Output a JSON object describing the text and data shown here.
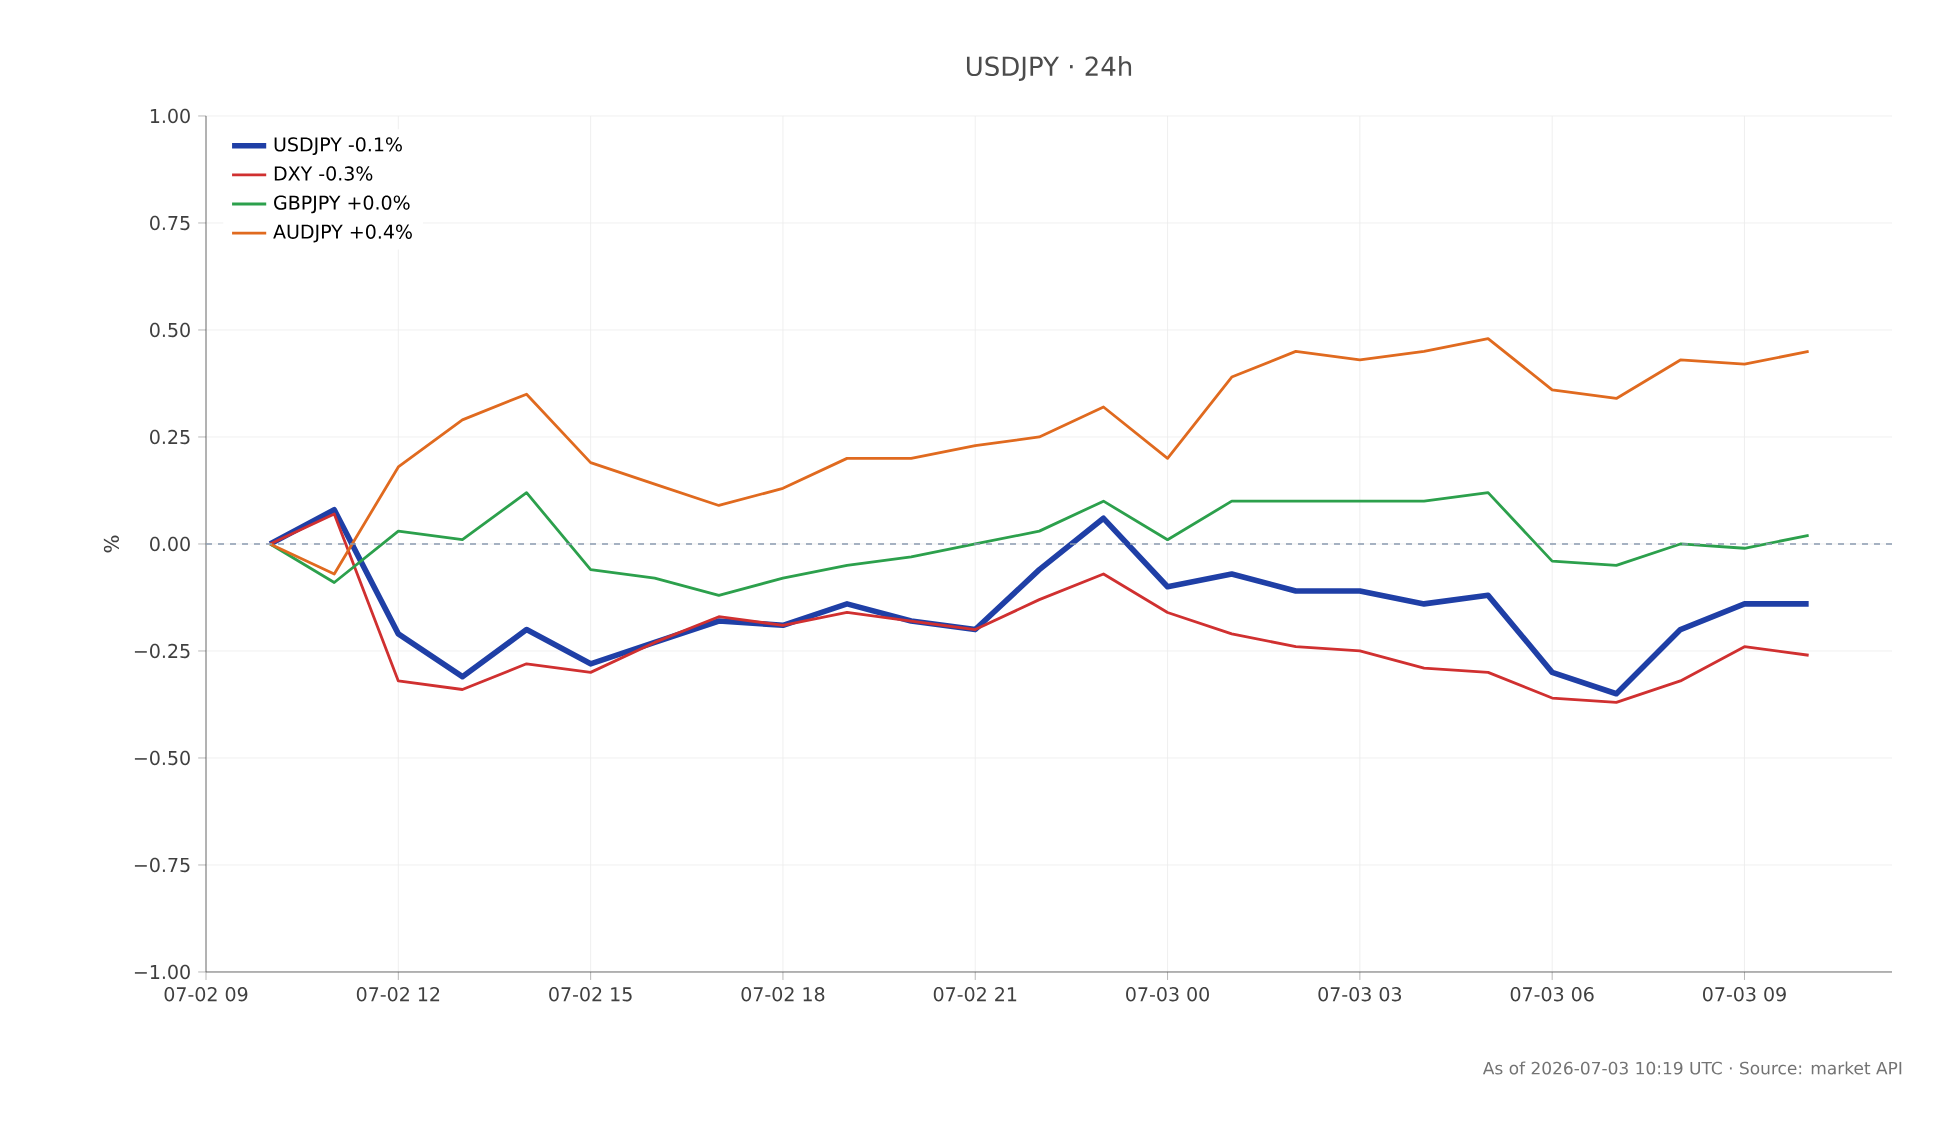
{
  "chart_data": {
    "type": "line",
    "title": "USDJPY · 24h",
    "ylabel": "%",
    "x": [
      "2026-07-02T10:00",
      "2026-07-02T11:00",
      "2026-07-02T12:00",
      "2026-07-02T13:00",
      "2026-07-02T14:00",
      "2026-07-02T15:00",
      "2026-07-02T16:00",
      "2026-07-02T17:00",
      "2026-07-02T18:00",
      "2026-07-02T19:00",
      "2026-07-02T20:00",
      "2026-07-02T21:00",
      "2026-07-02T22:00",
      "2026-07-02T23:00",
      "2026-07-03T00:00",
      "2026-07-03T01:00",
      "2026-07-03T02:00",
      "2026-07-03T03:00",
      "2026-07-03T04:00",
      "2026-07-03T05:00",
      "2026-07-03T06:00",
      "2026-07-03T07:00",
      "2026-07-03T08:00",
      "2026-07-03T09:00",
      "2026-07-03T10:00"
    ],
    "series": [
      {
        "name": "USDJPY -0.1%",
        "color": "#1f3fa6",
        "values": [
          0,
          0.08,
          -0.21,
          -0.31,
          -0.2,
          -0.28,
          -0.23,
          -0.18,
          -0.19,
          -0.14,
          -0.18,
          -0.2,
          -0.06,
          0.06,
          -0.1,
          -0.07,
          -0.11,
          -0.11,
          -0.14,
          -0.12,
          -0.3,
          -0.35,
          -0.2,
          -0.14,
          -0.14
        ]
      },
      {
        "name": "DXY -0.3%",
        "color": "#d03030",
        "values": [
          0,
          0.07,
          -0.32,
          -0.34,
          -0.28,
          -0.3,
          -0.23,
          -0.17,
          -0.19,
          -0.16,
          -0.18,
          -0.2,
          -0.13,
          -0.07,
          -0.16,
          -0.21,
          -0.24,
          -0.25,
          -0.29,
          -0.3,
          -0.36,
          -0.37,
          -0.32,
          -0.24,
          -0.26
        ]
      },
      {
        "name": "GBPJPY +0.0%",
        "color": "#2ca04c",
        "values": [
          0,
          -0.09,
          0.03,
          0.01,
          0.12,
          -0.06,
          -0.08,
          -0.12,
          -0.08,
          -0.05,
          -0.03,
          0,
          0.03,
          0.1,
          0.01,
          0.1,
          0.1,
          0.1,
          0.1,
          0.12,
          -0.04,
          -0.05,
          0,
          -0.01,
          0.02
        ]
      },
      {
        "name": "AUDJPY +0.4%",
        "color": "#e06a1f",
        "values": [
          0,
          -0.07,
          0.18,
          0.29,
          0.35,
          0.19,
          0.14,
          0.09,
          0.13,
          0.2,
          0.2,
          0.23,
          0.25,
          0.32,
          0.2,
          0.39,
          0.45,
          0.43,
          0.45,
          0.48,
          0.36,
          0.34,
          0.43,
          0.42,
          0.45
        ]
      }
    ],
    "xlim": [
      "2026-07-02T09:00",
      "2026-07-03T11:18"
    ],
    "xticks": [
      {
        "value": "2026-07-02T09:00",
        "label": "07-02 09"
      },
      {
        "value": "2026-07-02T12:00",
        "label": "07-02 12"
      },
      {
        "value": "2026-07-02T15:00",
        "label": "07-02 15"
      },
      {
        "value": "2026-07-02T18:00",
        "label": "07-02 18"
      },
      {
        "value": "2026-07-02T21:00",
        "label": "07-02 21"
      },
      {
        "value": "2026-07-03T00:00",
        "label": "07-03 00"
      },
      {
        "value": "2026-07-03T03:00",
        "label": "07-03 03"
      },
      {
        "value": "2026-07-03T06:00",
        "label": "07-03 06"
      },
      {
        "value": "2026-07-03T09:00",
        "label": "07-03 09"
      }
    ],
    "ylim": [
      -1,
      1
    ],
    "yticks": [
      {
        "value": -1,
        "label": "−1.00"
      },
      {
        "value": -0.75,
        "label": "−0.75"
      },
      {
        "value": -0.5,
        "label": "−0.50"
      },
      {
        "value": -0.25,
        "label": "−0.25"
      },
      {
        "value": 0,
        "label": "0.00"
      },
      {
        "value": 0.25,
        "label": "0.25"
      },
      {
        "value": 0.5,
        "label": "0.50"
      },
      {
        "value": 0.75,
        "label": "0.75"
      },
      {
        "value": 1,
        "label": "1.00"
      }
    ],
    "ref_lines": [
      {
        "axis": "y",
        "value": 0,
        "color": "#8a9bb0",
        "line_style": "dashed"
      }
    ],
    "grid": true,
    "legend": "top left",
    "marker": "none",
    "line_style": "solid",
    "annotations": [
      "As of 2026-07-03 10:19 UTC · Source: market API"
    ]
  }
}
